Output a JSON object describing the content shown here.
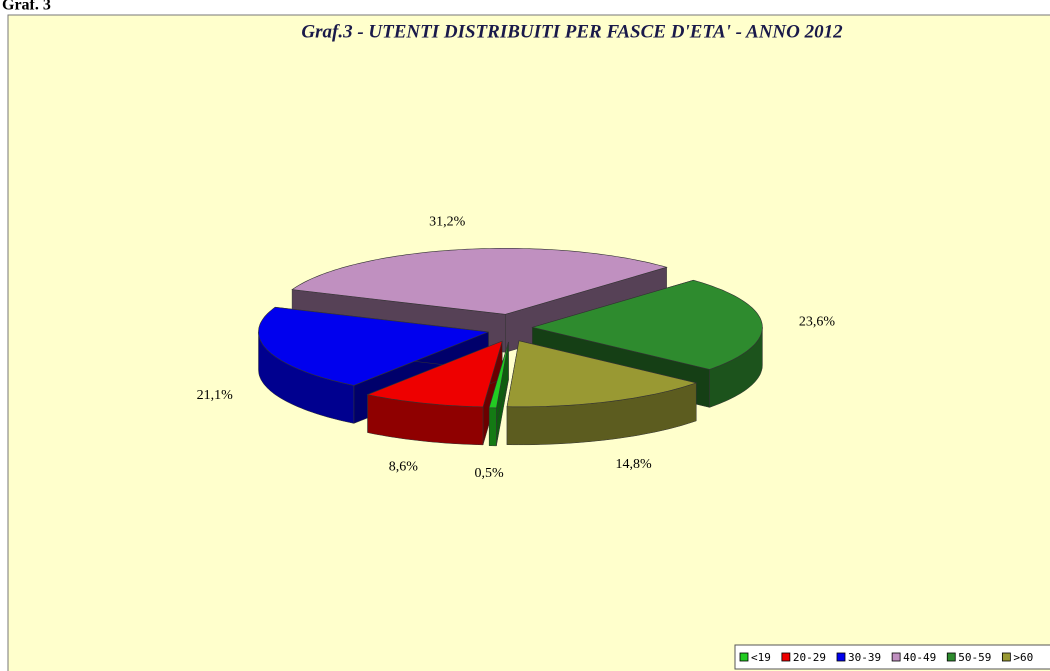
{
  "heading": "Graf. 3",
  "chart_data": {
    "type": "pie3d",
    "title": "Graf.3 - UTENTI DISTRIBUITI PER FASCE D'ETA' - ANNO 2012",
    "categories": [
      "<19",
      "20-29",
      "30-39",
      "40-49",
      "50-59",
      ">60"
    ],
    "values": [
      0.5,
      8.6,
      21.1,
      31.2,
      23.6,
      14.8
    ],
    "value_labels": [
      "0,5%",
      "8,6%",
      "21,1%",
      "31,2%",
      "23,6%",
      "14,8%"
    ],
    "colors": [
      "#22cc22",
      "#ee0000",
      "#0000ee",
      "#c090c0",
      "#2e8b2e",
      "#999933"
    ],
    "legend": "bottom-right"
  }
}
